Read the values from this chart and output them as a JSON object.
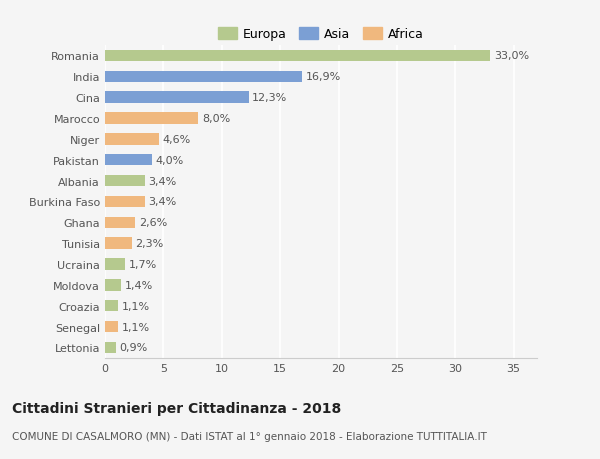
{
  "countries": [
    "Romania",
    "India",
    "Cina",
    "Marocco",
    "Niger",
    "Pakistan",
    "Albania",
    "Burkina Faso",
    "Ghana",
    "Tunisia",
    "Ucraina",
    "Moldova",
    "Croazia",
    "Senegal",
    "Lettonia"
  ],
  "values": [
    33.0,
    16.9,
    12.3,
    8.0,
    4.6,
    4.0,
    3.4,
    3.4,
    2.6,
    2.3,
    1.7,
    1.4,
    1.1,
    1.1,
    0.9
  ],
  "labels": [
    "33,0%",
    "16,9%",
    "12,3%",
    "8,0%",
    "4,6%",
    "4,0%",
    "3,4%",
    "3,4%",
    "2,6%",
    "2,3%",
    "1,7%",
    "1,4%",
    "1,1%",
    "1,1%",
    "0,9%"
  ],
  "continents": [
    "Europa",
    "Asia",
    "Asia",
    "Africa",
    "Africa",
    "Asia",
    "Europa",
    "Africa",
    "Africa",
    "Africa",
    "Europa",
    "Europa",
    "Europa",
    "Africa",
    "Europa"
  ],
  "colors": {
    "Europa": "#b5c98e",
    "Asia": "#7b9fd4",
    "Africa": "#f0b87e"
  },
  "xlim": [
    0,
    37
  ],
  "xticks": [
    0,
    5,
    10,
    15,
    20,
    25,
    30,
    35
  ],
  "title": "Cittadini Stranieri per Cittadinanza - 2018",
  "subtitle": "COMUNE DI CASALMORO (MN) - Dati ISTAT al 1° gennaio 2018 - Elaborazione TUTTITALIA.IT",
  "background_color": "#f5f5f5",
  "bar_height": 0.55,
  "grid_color": "#ffffff",
  "title_fontsize": 10,
  "subtitle_fontsize": 7.5,
  "tick_fontsize": 8,
  "label_fontsize": 8
}
